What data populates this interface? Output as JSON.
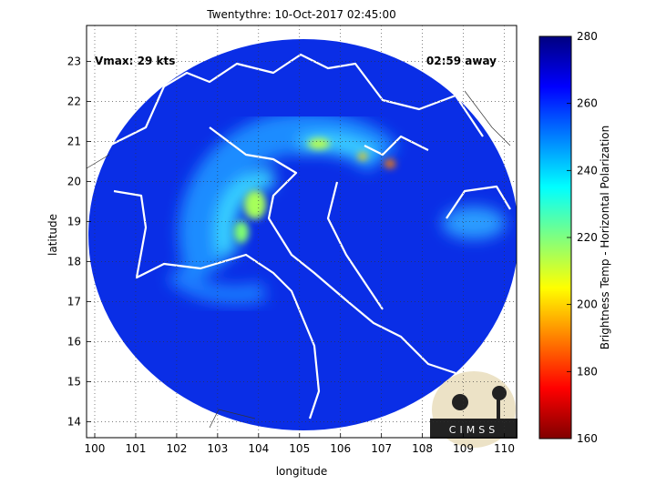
{
  "chart_data": {
    "type": "map",
    "title": "Twentythre: 10-Oct-2017 02:45:00",
    "xlabel": "longitude",
    "ylabel": "latitude",
    "annotations": [
      "Vmax: 29 kts",
      "02:59 away"
    ],
    "logo": "CIMSS",
    "xlim": [
      99.8,
      110.3
    ],
    "xticks": [
      100,
      101,
      102,
      103,
      104,
      105,
      106,
      107,
      108,
      109,
      110
    ],
    "ylim": [
      13.6,
      23.9
    ],
    "yticks": [
      14,
      15,
      16,
      17,
      18,
      19,
      20,
      21,
      22,
      23
    ],
    "grid": true,
    "colorbar": {
      "label": "Brightness Temp - Horizontal Polarization",
      "clim": [
        160,
        280
      ],
      "ticks": [
        160,
        180,
        200,
        220,
        240,
        260,
        280
      ],
      "colormap": "jet"
    }
  }
}
